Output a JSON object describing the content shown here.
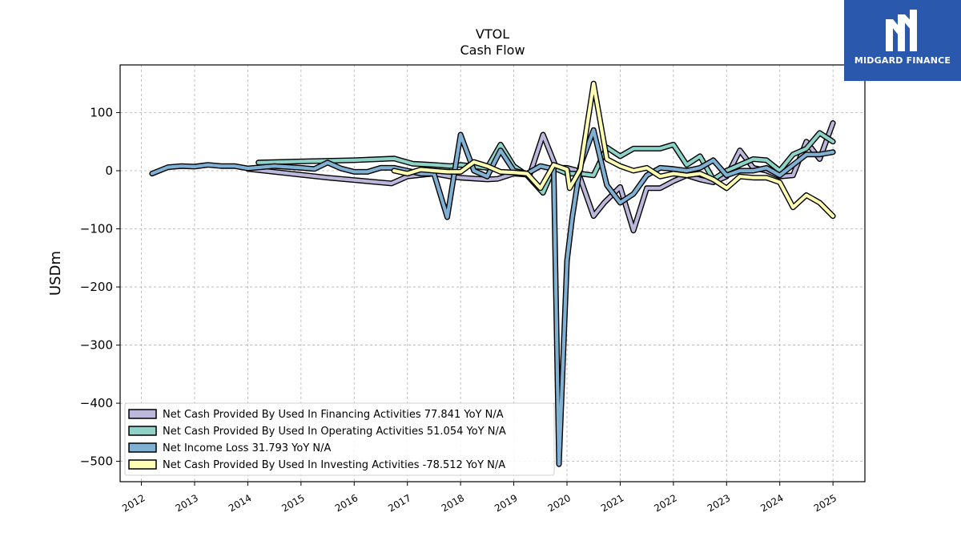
{
  "brand": {
    "name": "MIDGARD FINANCE",
    "logo_icon": "midgard-m-icon",
    "bg_color": "#2a58ad"
  },
  "chart_data": {
    "type": "line",
    "title": "VTOL",
    "subtitle": "Cash Flow",
    "xlabel": "",
    "ylabel": "USDm",
    "xlim": [
      2011.6,
      2025.6
    ],
    "ylim": [
      -535,
      182
    ],
    "x_ticks": [
      2012,
      2013,
      2014,
      2015,
      2016,
      2017,
      2018,
      2019,
      2020,
      2021,
      2022,
      2023,
      2024,
      2025
    ],
    "x_tick_labels": [
      "2012",
      "2013",
      "2014",
      "2015",
      "2016",
      "2017",
      "2018",
      "2019",
      "2020",
      "2021",
      "2022",
      "2023",
      "2024",
      "2025"
    ],
    "y_ticks": [
      100,
      0,
      -100,
      -200,
      -300,
      -400,
      -500
    ],
    "y_tick_labels": [
      "100",
      "0",
      "−100",
      "−200",
      "−300",
      "−400",
      "−500"
    ],
    "grid": true,
    "legend_position": "lower-left",
    "series": [
      {
        "name": "Net Cash Provided By Used In Financing Activities  77.841 YoY N/A",
        "color": "#bcb8db",
        "points": [
          [
            2014.0,
            3
          ],
          [
            2015.5,
            -12
          ],
          [
            2016.7,
            -22
          ],
          [
            2017.0,
            -10
          ],
          [
            2017.5,
            -5
          ],
          [
            2017.8,
            -10
          ],
          [
            2018.0,
            -12
          ],
          [
            2018.5,
            -15
          ],
          [
            2018.7,
            -14
          ],
          [
            2019.0,
            -5
          ],
          [
            2019.3,
            -7
          ],
          [
            2019.55,
            62
          ],
          [
            2019.8,
            5
          ],
          [
            2020.0,
            5
          ],
          [
            2020.2,
            0
          ],
          [
            2020.5,
            -78
          ],
          [
            2020.7,
            -55
          ],
          [
            2021.0,
            -28
          ],
          [
            2021.25,
            -103
          ],
          [
            2021.5,
            -30
          ],
          [
            2021.75,
            -30
          ],
          [
            2022.0,
            -18
          ],
          [
            2022.25,
            -8
          ],
          [
            2022.5,
            -15
          ],
          [
            2022.75,
            -20
          ],
          [
            2023.0,
            -10
          ],
          [
            2023.25,
            35
          ],
          [
            2023.5,
            5
          ],
          [
            2023.75,
            0
          ],
          [
            2024.0,
            -10
          ],
          [
            2024.25,
            -8
          ],
          [
            2024.5,
            50
          ],
          [
            2024.75,
            20
          ],
          [
            2025.0,
            82
          ]
        ]
      },
      {
        "name": "Net Cash Provided By Used In Operating Activities  51.054 YoY N/A",
        "color": "#8dd3c7",
        "points": [
          [
            2014.2,
            14
          ],
          [
            2015.0,
            16
          ],
          [
            2016.0,
            18
          ],
          [
            2016.75,
            21
          ],
          [
            2017.1,
            12
          ],
          [
            2017.5,
            10
          ],
          [
            2017.8,
            8
          ],
          [
            2018.0,
            10
          ],
          [
            2018.5,
            5
          ],
          [
            2018.75,
            45
          ],
          [
            2019.0,
            8
          ],
          [
            2019.25,
            -8
          ],
          [
            2019.55,
            -38
          ],
          [
            2019.75,
            5
          ],
          [
            2020.0,
            -5
          ],
          [
            2020.25,
            -5
          ],
          [
            2020.5,
            -8
          ],
          [
            2020.75,
            40
          ],
          [
            2021.0,
            25
          ],
          [
            2021.25,
            38
          ],
          [
            2021.5,
            38
          ],
          [
            2021.75,
            38
          ],
          [
            2022.0,
            45
          ],
          [
            2022.25,
            10
          ],
          [
            2022.5,
            25
          ],
          [
            2022.75,
            -15
          ],
          [
            2023.0,
            0
          ],
          [
            2023.25,
            10
          ],
          [
            2023.5,
            20
          ],
          [
            2023.75,
            18
          ],
          [
            2024.0,
            0
          ],
          [
            2024.25,
            28
          ],
          [
            2024.5,
            38
          ],
          [
            2024.75,
            65
          ],
          [
            2025.0,
            50
          ]
        ]
      },
      {
        "name": "Net Income Loss  31.793 YoY N/A",
        "color": "#80b1d3",
        "points": [
          [
            2012.2,
            -5
          ],
          [
            2012.5,
            6
          ],
          [
            2012.75,
            8
          ],
          [
            2013.0,
            7
          ],
          [
            2013.25,
            10
          ],
          [
            2013.5,
            8
          ],
          [
            2013.75,
            8
          ],
          [
            2014.0,
            4
          ],
          [
            2014.5,
            8
          ],
          [
            2015.0,
            5
          ],
          [
            2015.25,
            3
          ],
          [
            2015.5,
            14
          ],
          [
            2015.75,
            4
          ],
          [
            2016.0,
            -2
          ],
          [
            2016.25,
            -2
          ],
          [
            2016.5,
            5
          ],
          [
            2016.75,
            5
          ],
          [
            2017.0,
            0
          ],
          [
            2017.25,
            -5
          ],
          [
            2017.5,
            -5
          ],
          [
            2017.75,
            -80
          ],
          [
            2018.0,
            62
          ],
          [
            2018.25,
            0
          ],
          [
            2018.5,
            -10
          ],
          [
            2018.75,
            35
          ],
          [
            2019.0,
            0
          ],
          [
            2019.25,
            -5
          ],
          [
            2019.5,
            8
          ],
          [
            2019.75,
            3
          ],
          [
            2019.85,
            -505
          ],
          [
            2020.0,
            -155
          ],
          [
            2020.1,
            -80
          ],
          [
            2020.25,
            8
          ],
          [
            2020.5,
            70
          ],
          [
            2020.75,
            -25
          ],
          [
            2021.0,
            -55
          ],
          [
            2021.25,
            -40
          ],
          [
            2021.5,
            -8
          ],
          [
            2021.75,
            5
          ],
          [
            2022.0,
            3
          ],
          [
            2022.25,
            0
          ],
          [
            2022.5,
            5
          ],
          [
            2022.75,
            18
          ],
          [
            2023.0,
            -8
          ],
          [
            2023.25,
            0
          ],
          [
            2023.5,
            0
          ],
          [
            2023.75,
            5
          ],
          [
            2024.0,
            -8
          ],
          [
            2024.25,
            10
          ],
          [
            2024.5,
            28
          ],
          [
            2024.75,
            28
          ],
          [
            2025.0,
            32
          ]
        ]
      },
      {
        "name": "Net Cash Provided By Used In Investing Activities  -78.512 YoY N/A",
        "color": "#ffffb3",
        "points": [
          [
            2016.75,
            0
          ],
          [
            2017.0,
            -5
          ],
          [
            2017.25,
            2
          ],
          [
            2017.5,
            0
          ],
          [
            2017.75,
            -2
          ],
          [
            2018.0,
            -2
          ],
          [
            2018.25,
            15
          ],
          [
            2018.5,
            8
          ],
          [
            2018.75,
            -2
          ],
          [
            2019.0,
            -3
          ],
          [
            2019.25,
            -5
          ],
          [
            2019.5,
            -30
          ],
          [
            2019.75,
            10
          ],
          [
            2020.0,
            2
          ],
          [
            2020.05,
            -30
          ],
          [
            2020.25,
            2
          ],
          [
            2020.5,
            150
          ],
          [
            2020.75,
            20
          ],
          [
            2021.0,
            8
          ],
          [
            2021.25,
            0
          ],
          [
            2021.5,
            5
          ],
          [
            2021.75,
            -10
          ],
          [
            2022.0,
            -5
          ],
          [
            2022.25,
            -8
          ],
          [
            2022.5,
            -5
          ],
          [
            2022.75,
            -15
          ],
          [
            2023.0,
            -30
          ],
          [
            2023.25,
            -10
          ],
          [
            2023.5,
            -12
          ],
          [
            2023.75,
            -12
          ],
          [
            2024.0,
            -20
          ],
          [
            2024.25,
            -63
          ],
          [
            2024.5,
            -42
          ],
          [
            2024.75,
            -55
          ],
          [
            2025.0,
            -78
          ]
        ]
      }
    ]
  }
}
